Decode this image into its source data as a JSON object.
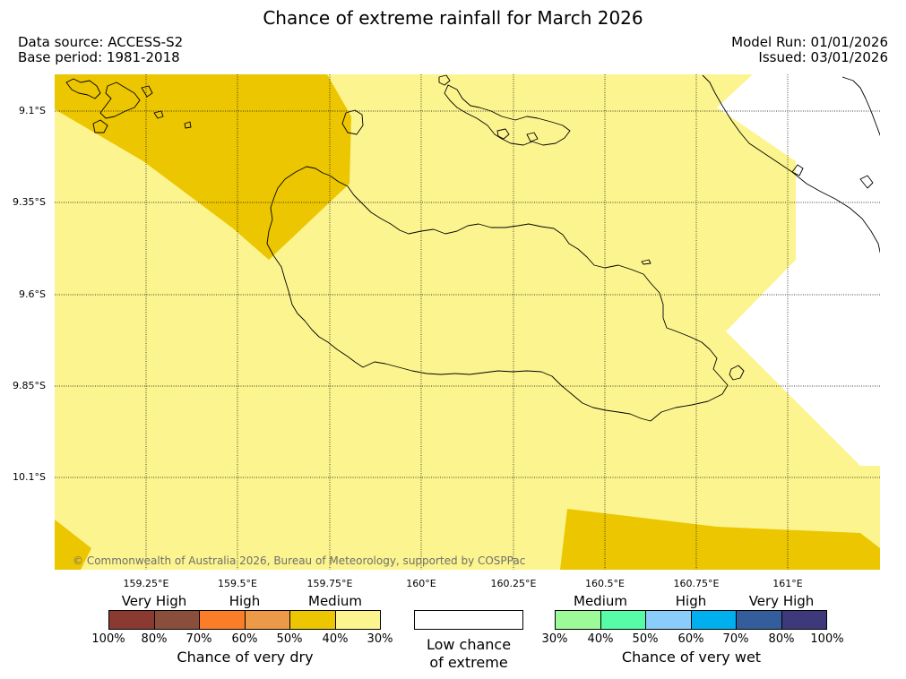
{
  "title": "Chance of extreme rainfall for March 2026",
  "info": {
    "data_source": "Data source: ACCESS-S2",
    "base_period": "Base period: 1981-2018",
    "model_run": "Model Run: 01/01/2026",
    "issued": "Issued: 03/01/2026"
  },
  "map": {
    "lat_labels": [
      "9.1°S",
      "9.35°S",
      "9.6°S",
      "9.85°S",
      "10.1°S"
    ],
    "lon_labels": [
      "159.25°E",
      "159.5°E",
      "159.75°E",
      "160°E",
      "160.25°E",
      "160.5°E",
      "160.75°E",
      "161°E"
    ],
    "copyright": "© Commonwealth of Australia 2026, Bureau of Meteorology, supported by COSPPac",
    "colors": {
      "medium_dry": "#fcf48e",
      "high_dry": "#ecc600",
      "low": "#ffffff"
    }
  },
  "legend": {
    "dry": {
      "categories": [
        "Very High",
        "High",
        "Medium"
      ],
      "colors": [
        "#8b3a32",
        "#8a4f3c",
        "#fc7d27",
        "#ed9a48",
        "#ecc600",
        "#fcf48e"
      ],
      "ticks": [
        "100%",
        "80%",
        "70%",
        "60%",
        "50%",
        "40%",
        "30%"
      ],
      "title": "Chance of very dry"
    },
    "low": {
      "line1": "Low chance",
      "line2": "of extreme",
      "color": "#ffffff"
    },
    "wet": {
      "categories": [
        "Medium",
        "High",
        "Very High"
      ],
      "colors": [
        "#9cfa98",
        "#56fca6",
        "#8bcdfa",
        "#00b0ee",
        "#345d9c",
        "#3e397a"
      ],
      "ticks": [
        "30%",
        "40%",
        "50%",
        "60%",
        "70%",
        "80%",
        "100%"
      ],
      "title": "Chance of very wet"
    }
  }
}
